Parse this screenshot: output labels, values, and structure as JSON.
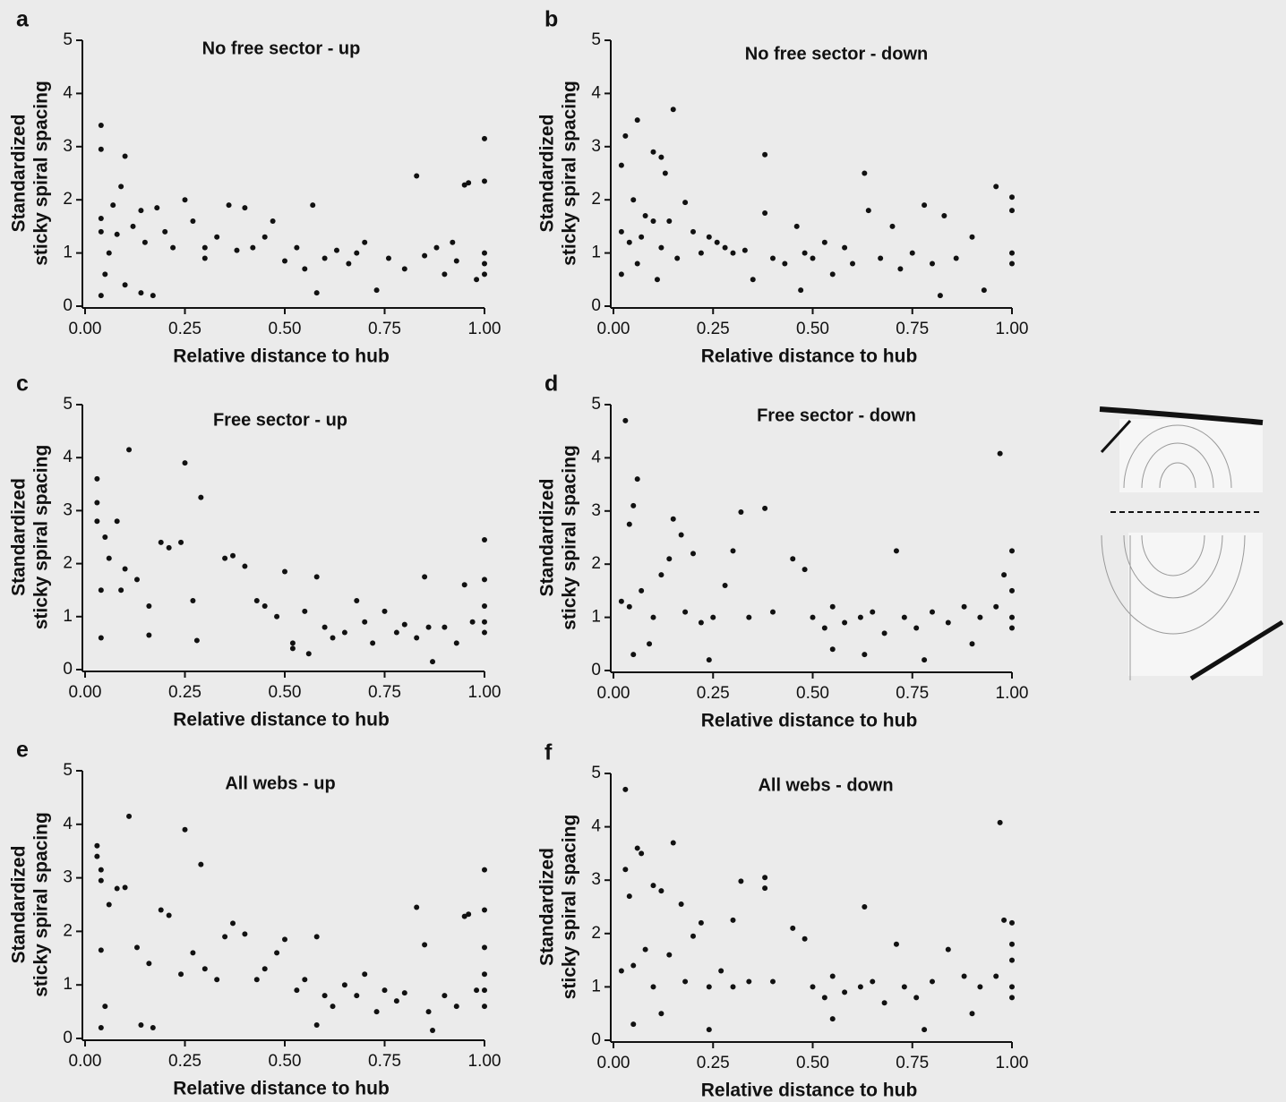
{
  "chart_data": [
    {
      "type": "scatter",
      "panel": "a",
      "title": "No free sector - up",
      "xlabel": "Relative distance to hub",
      "ylabel": [
        "Standardized",
        "sticky spiral spacing"
      ],
      "color": "#111111",
      "xlim": [
        0,
        1
      ],
      "ylim": [
        0,
        5
      ],
      "xticks": [
        {
          "value": 0,
          "label": "0.00"
        },
        {
          "value": 0.25,
          "label": "0.25"
        },
        {
          "value": 0.5,
          "label": "0.50"
        },
        {
          "value": 0.75,
          "label": "0.75"
        },
        {
          "value": 1,
          "label": "1.00"
        }
      ],
      "yticks": [
        0,
        1,
        2,
        3,
        4,
        5
      ],
      "x": [
        0.04,
        0.04,
        0.1,
        0.09,
        0.04,
        0.04,
        0.05,
        0.04,
        0.07,
        0.08,
        0.12,
        0.14,
        0.15,
        0.17,
        0.14,
        0.18,
        0.2,
        0.22,
        0.25,
        0.27,
        0.3,
        0.33,
        0.36,
        0.38,
        0.4,
        0.42,
        0.45,
        0.47,
        0.5,
        0.53,
        0.57,
        0.58,
        0.6,
        0.63,
        0.66,
        0.7,
        0.73,
        0.76,
        0.8,
        0.83,
        0.85,
        0.88,
        0.9,
        0.92,
        0.95,
        0.96,
        0.98,
        1.0,
        1.0,
        1.0,
        1.0,
        1.0,
        0.06,
        0.1,
        0.3,
        0.55,
        0.68,
        0.93
      ],
      "y": [
        3.4,
        2.95,
        2.82,
        2.25,
        1.65,
        1.4,
        0.6,
        0.2,
        1.9,
        1.35,
        1.5,
        1.8,
        1.2,
        0.2,
        0.25,
        1.85,
        1.4,
        1.1,
        2.0,
        1.6,
        0.9,
        1.3,
        1.9,
        1.05,
        1.85,
        1.1,
        1.3,
        1.6,
        0.85,
        1.1,
        1.9,
        0.25,
        0.9,
        1.05,
        0.8,
        1.2,
        0.3,
        0.9,
        0.7,
        2.45,
        0.95,
        1.1,
        0.6,
        1.2,
        2.28,
        2.32,
        0.5,
        3.15,
        2.35,
        1.0,
        0.8,
        0.6,
        1.0,
        0.4,
        1.1,
        0.7,
        1.0,
        0.85
      ]
    },
    {
      "type": "scatter",
      "panel": "b",
      "title": "No free sector - down",
      "xlabel": "Relative distance to hub",
      "ylabel": [
        "Standardized",
        "sticky spiral spacing"
      ],
      "color": "#111111",
      "xlim": [
        0,
        1
      ],
      "ylim": [
        0,
        5
      ],
      "xticks": [
        {
          "value": 0,
          "label": "0.00"
        },
        {
          "value": 0.25,
          "label": "0.25"
        },
        {
          "value": 0.5,
          "label": "0.50"
        },
        {
          "value": 0.75,
          "label": "0.75"
        },
        {
          "value": 1,
          "label": "1.00"
        }
      ],
      "yticks": [
        0,
        1,
        2,
        3,
        4,
        5
      ],
      "x": [
        0.03,
        0.02,
        0.06,
        0.1,
        0.15,
        0.12,
        0.13,
        0.05,
        0.08,
        0.02,
        0.04,
        0.07,
        0.1,
        0.12,
        0.14,
        0.18,
        0.2,
        0.22,
        0.24,
        0.26,
        0.28,
        0.3,
        0.33,
        0.35,
        0.38,
        0.38,
        0.4,
        0.43,
        0.46,
        0.48,
        0.5,
        0.53,
        0.55,
        0.58,
        0.6,
        0.63,
        0.64,
        0.67,
        0.7,
        0.72,
        0.75,
        0.78,
        0.8,
        0.83,
        0.86,
        0.9,
        0.93,
        0.96,
        1.0,
        1.0,
        1.0,
        1.0,
        0.02,
        0.06,
        0.11,
        0.16,
        0.47,
        0.82
      ],
      "y": [
        3.2,
        2.65,
        3.5,
        2.9,
        3.7,
        2.8,
        2.5,
        2.0,
        1.7,
        1.4,
        1.2,
        1.3,
        1.6,
        1.1,
        1.6,
        1.95,
        1.4,
        1.0,
        1.3,
        1.2,
        1.1,
        1.0,
        1.05,
        0.5,
        2.85,
        1.75,
        0.9,
        0.8,
        1.5,
        1.0,
        0.9,
        1.2,
        0.6,
        1.1,
        0.8,
        2.5,
        1.8,
        0.9,
        1.5,
        0.7,
        1.0,
        1.9,
        0.8,
        1.7,
        0.9,
        1.3,
        0.3,
        2.25,
        2.05,
        1.8,
        1.0,
        0.8,
        0.6,
        0.8,
        0.5,
        0.9,
        0.3,
        0.2
      ]
    },
    {
      "type": "scatter",
      "panel": "c",
      "title": "Free sector - up",
      "xlabel": "Relative distance to hub",
      "ylabel": [
        "Standardized",
        "sticky spiral spacing"
      ],
      "color": "#111111",
      "xlim": [
        0,
        1
      ],
      "ylim": [
        0,
        5
      ],
      "xticks": [
        {
          "value": 0,
          "label": "0.00"
        },
        {
          "value": 0.25,
          "label": "0.25"
        },
        {
          "value": 0.5,
          "label": "0.50"
        },
        {
          "value": 0.75,
          "label": "0.75"
        },
        {
          "value": 1,
          "label": "1.00"
        }
      ],
      "yticks": [
        0,
        1,
        2,
        3,
        4,
        5
      ],
      "x": [
        0.03,
        0.03,
        0.03,
        0.05,
        0.08,
        0.06,
        0.04,
        0.04,
        0.11,
        0.25,
        0.29,
        0.1,
        0.13,
        0.16,
        0.19,
        0.21,
        0.27,
        0.24,
        0.28,
        0.35,
        0.37,
        0.4,
        0.43,
        0.45,
        0.48,
        0.5,
        0.52,
        0.55,
        0.58,
        0.6,
        0.62,
        0.65,
        0.68,
        0.7,
        0.72,
        0.75,
        0.78,
        0.8,
        0.83,
        0.85,
        0.87,
        0.9,
        0.93,
        0.95,
        0.97,
        1.0,
        1.0,
        1.0,
        1.0,
        1.0,
        0.16,
        0.09,
        0.52,
        0.56,
        0.86
      ],
      "y": [
        3.6,
        3.15,
        2.8,
        2.5,
        2.8,
        2.1,
        1.5,
        0.6,
        4.15,
        3.9,
        3.25,
        1.9,
        1.7,
        1.2,
        2.4,
        2.3,
        1.3,
        2.4,
        0.55,
        2.1,
        2.15,
        1.95,
        1.3,
        1.2,
        1.0,
        1.85,
        0.5,
        1.1,
        1.75,
        0.8,
        0.6,
        0.7,
        1.3,
        0.9,
        0.5,
        1.1,
        0.7,
        0.85,
        0.6,
        1.75,
        0.15,
        0.8,
        0.5,
        1.6,
        0.9,
        2.45,
        1.7,
        1.2,
        0.9,
        0.7,
        0.65,
        1.5,
        0.4,
        0.3,
        0.8
      ]
    },
    {
      "type": "scatter",
      "panel": "d",
      "title": "Free sector - down",
      "xlabel": "Relative distance to hub",
      "ylabel": [
        "Standardized",
        "sticky spiral spacing"
      ],
      "color": "#111111",
      "xlim": [
        0,
        1
      ],
      "ylim": [
        0,
        5
      ],
      "xticks": [
        {
          "value": 0,
          "label": "0.00"
        },
        {
          "value": 0.25,
          "label": "0.25"
        },
        {
          "value": 0.5,
          "label": "0.50"
        },
        {
          "value": 0.75,
          "label": "0.75"
        },
        {
          "value": 1,
          "label": "1.00"
        }
      ],
      "yticks": [
        0,
        1,
        2,
        3,
        4,
        5
      ],
      "x": [
        0.03,
        0.04,
        0.06,
        0.05,
        0.15,
        0.17,
        0.32,
        0.38,
        0.3,
        0.2,
        0.14,
        0.02,
        0.04,
        0.07,
        0.1,
        0.12,
        0.18,
        0.22,
        0.25,
        0.28,
        0.34,
        0.4,
        0.45,
        0.48,
        0.5,
        0.53,
        0.55,
        0.58,
        0.62,
        0.65,
        0.68,
        0.71,
        0.73,
        0.76,
        0.8,
        0.84,
        0.88,
        0.92,
        0.96,
        0.97,
        0.98,
        1.0,
        1.0,
        1.0,
        1.0,
        0.05,
        0.09,
        0.24,
        0.55,
        0.63,
        0.78,
        0.9
      ],
      "y": [
        4.7,
        2.75,
        3.6,
        3.1,
        2.85,
        2.55,
        2.98,
        3.05,
        2.25,
        2.2,
        2.1,
        1.3,
        1.2,
        1.5,
        1.0,
        1.8,
        1.1,
        0.9,
        1.0,
        1.6,
        1.0,
        1.1,
        2.1,
        1.9,
        1.0,
        0.8,
        1.2,
        0.9,
        1.0,
        1.1,
        0.7,
        2.25,
        1.0,
        0.8,
        1.1,
        0.9,
        1.2,
        1.0,
        1.2,
        4.08,
        1.8,
        2.25,
        1.5,
        1.0,
        0.8,
        0.3,
        0.5,
        0.2,
        0.4,
        0.3,
        0.2,
        0.5
      ]
    },
    {
      "type": "scatter",
      "panel": "e",
      "title": "All webs - up",
      "xlabel": "Relative distance to hub",
      "ylabel": [
        "Standardized",
        "sticky spiral spacing"
      ],
      "color": "#111111",
      "xlim": [
        0,
        1
      ],
      "ylim": [
        0,
        5
      ],
      "xticks": [
        {
          "value": 0,
          "label": "0.00"
        },
        {
          "value": 0.25,
          "label": "0.25"
        },
        {
          "value": 0.5,
          "label": "0.50"
        },
        {
          "value": 0.75,
          "label": "0.75"
        },
        {
          "value": 1,
          "label": "1.00"
        }
      ],
      "yticks": [
        0,
        1,
        2,
        3,
        4,
        5
      ],
      "x": [
        0.03,
        0.03,
        0.04,
        0.04,
        0.1,
        0.11,
        0.25,
        0.29,
        0.06,
        0.08,
        0.04,
        0.05,
        0.04,
        0.13,
        0.16,
        0.19,
        0.21,
        0.24,
        0.27,
        0.3,
        0.33,
        0.35,
        0.37,
        0.4,
        0.43,
        0.45,
        0.48,
        0.5,
        0.53,
        0.55,
        0.58,
        0.6,
        0.62,
        0.65,
        0.68,
        0.7,
        0.73,
        0.75,
        0.78,
        0.8,
        0.83,
        0.85,
        0.87,
        0.9,
        0.93,
        0.95,
        0.96,
        0.98,
        1.0,
        1.0,
        1.0,
        1.0,
        1.0,
        1.0,
        0.14,
        0.17,
        0.58,
        0.86
      ],
      "y": [
        3.6,
        3.4,
        3.15,
        2.95,
        2.82,
        4.15,
        3.9,
        3.25,
        2.5,
        2.8,
        1.65,
        0.6,
        0.2,
        1.7,
        1.4,
        2.4,
        2.3,
        1.2,
        1.6,
        1.3,
        1.1,
        1.9,
        2.15,
        1.95,
        1.1,
        1.3,
        1.6,
        1.85,
        0.9,
        1.1,
        1.9,
        0.8,
        0.6,
        1.0,
        0.8,
        1.2,
        0.5,
        0.9,
        0.7,
        0.85,
        2.45,
        1.75,
        0.15,
        0.8,
        0.6,
        2.28,
        2.32,
        0.9,
        3.15,
        2.4,
        1.7,
        1.2,
        0.9,
        0.6,
        0.25,
        0.2,
        0.25,
        0.5
      ]
    },
    {
      "type": "scatter",
      "panel": "f",
      "title": "All webs - down",
      "xlabel": "Relative distance to hub",
      "ylabel": [
        "Standardized",
        "sticky spiral spacing"
      ],
      "color": "#111111",
      "xlim": [
        0,
        1
      ],
      "ylim": [
        0,
        5
      ],
      "xticks": [
        {
          "value": 0,
          "label": "0.00"
        },
        {
          "value": 0.25,
          "label": "0.25"
        },
        {
          "value": 0.5,
          "label": "0.50"
        },
        {
          "value": 0.75,
          "label": "0.75"
        },
        {
          "value": 1,
          "label": "1.00"
        }
      ],
      "yticks": [
        0,
        1,
        2,
        3,
        4,
        5
      ],
      "x": [
        0.03,
        0.03,
        0.04,
        0.06,
        0.07,
        0.15,
        0.1,
        0.12,
        0.17,
        0.32,
        0.38,
        0.38,
        0.3,
        0.22,
        0.02,
        0.05,
        0.08,
        0.1,
        0.14,
        0.18,
        0.2,
        0.24,
        0.27,
        0.3,
        0.34,
        0.4,
        0.45,
        0.48,
        0.5,
        0.53,
        0.55,
        0.58,
        0.62,
        0.63,
        0.65,
        0.68,
        0.71,
        0.73,
        0.76,
        0.8,
        0.84,
        0.88,
        0.92,
        0.96,
        0.97,
        0.98,
        1.0,
        1.0,
        1.0,
        1.0,
        1.0,
        0.05,
        0.12,
        0.24,
        0.55,
        0.78,
        0.9
      ],
      "y": [
        4.7,
        3.2,
        2.7,
        3.6,
        3.5,
        3.7,
        2.9,
        2.8,
        2.55,
        2.98,
        3.05,
        2.85,
        2.25,
        2.2,
        1.3,
        1.4,
        1.7,
        1.0,
        1.6,
        1.1,
        1.95,
        1.0,
        1.3,
        1.0,
        1.1,
        1.1,
        2.1,
        1.9,
        1.0,
        0.8,
        1.2,
        0.9,
        1.0,
        2.5,
        1.1,
        0.7,
        1.8,
        1.0,
        0.8,
        1.1,
        1.7,
        1.2,
        1.0,
        1.2,
        4.08,
        2.25,
        2.2,
        1.8,
        1.5,
        1.0,
        0.8,
        0.3,
        0.5,
        0.2,
        0.4,
        0.2,
        0.5
      ]
    }
  ]
}
